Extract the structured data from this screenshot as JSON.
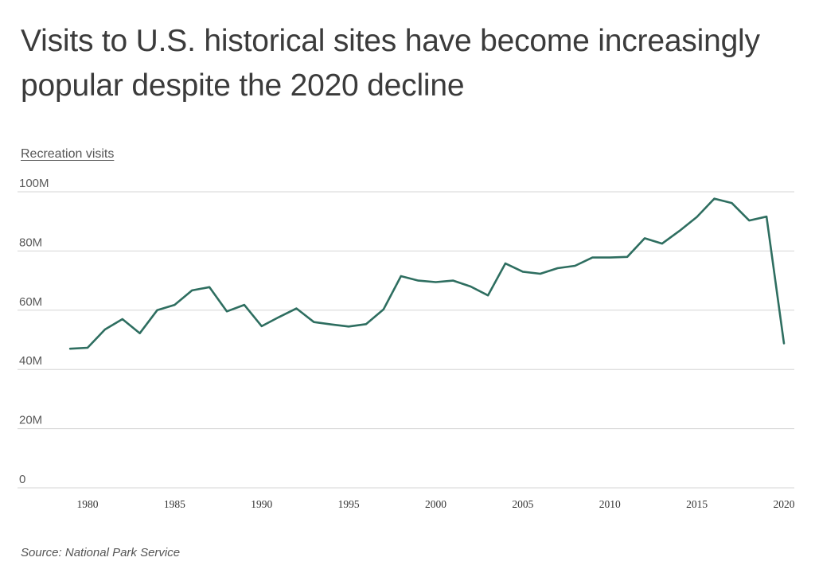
{
  "title": "Visits to U.S. historical sites have become increasingly popular despite the 2020 decline",
  "ylabel": "Recreation visits",
  "source": "Source:  National Park Service",
  "chart_data": {
    "type": "line",
    "title": "Visits to U.S. historical sites have become increasingly popular despite the 2020 decline",
    "xlabel": "",
    "ylabel": "Recreation visits",
    "xlim": [
      1978,
      2020.6
    ],
    "ylim": [
      0,
      100000000
    ],
    "grid": true,
    "line_color": "#2e6e60",
    "y_ticks": [
      {
        "value": 100000000,
        "label": "100M"
      },
      {
        "value": 80000000,
        "label": "80M"
      },
      {
        "value": 60000000,
        "label": "60M"
      },
      {
        "value": 40000000,
        "label": "40M"
      },
      {
        "value": 20000000,
        "label": "20M"
      },
      {
        "value": 0,
        "label": "0"
      }
    ],
    "x_ticks": [
      {
        "value": 1980,
        "label": "1980"
      },
      {
        "value": 1985,
        "label": "1985"
      },
      {
        "value": 1990,
        "label": "1990"
      },
      {
        "value": 1995,
        "label": "1995"
      },
      {
        "value": 2000,
        "label": "2000"
      },
      {
        "value": 2005,
        "label": "2005"
      },
      {
        "value": 2010,
        "label": "2010"
      },
      {
        "value": 2015,
        "label": "2015"
      },
      {
        "value": 2020,
        "label": "2020"
      }
    ],
    "series": [
      {
        "x": [
          1979,
          1980,
          1981,
          1982,
          1983,
          1984,
          1985,
          1986,
          1987,
          1988,
          1989,
          1990,
          1991,
          1992,
          1993,
          1994,
          1995,
          1996,
          1997,
          1998,
          1999,
          2000,
          2001,
          2002,
          2003,
          2004,
          2005,
          2006,
          2007,
          2008,
          2009,
          2010,
          2011,
          2012,
          2013,
          2014,
          2015,
          2016,
          2017,
          2018,
          2019,
          2020
        ],
        "values": [
          47000000,
          47300000,
          53500000,
          57000000,
          52200000,
          60000000,
          61800000,
          66700000,
          67800000,
          59600000,
          61800000,
          54600000,
          57700000,
          60600000,
          56000000,
          55200000,
          54500000,
          55300000,
          60300000,
          71500000,
          70000000,
          69500000,
          70000000,
          68000000,
          65000000,
          75800000,
          73000000,
          72300000,
          74200000,
          75000000,
          77800000,
          77800000,
          78000000,
          84300000,
          82500000,
          86800000,
          91500000,
          97700000,
          96200000,
          90300000,
          91600000,
          48800000
        ]
      }
    ]
  }
}
